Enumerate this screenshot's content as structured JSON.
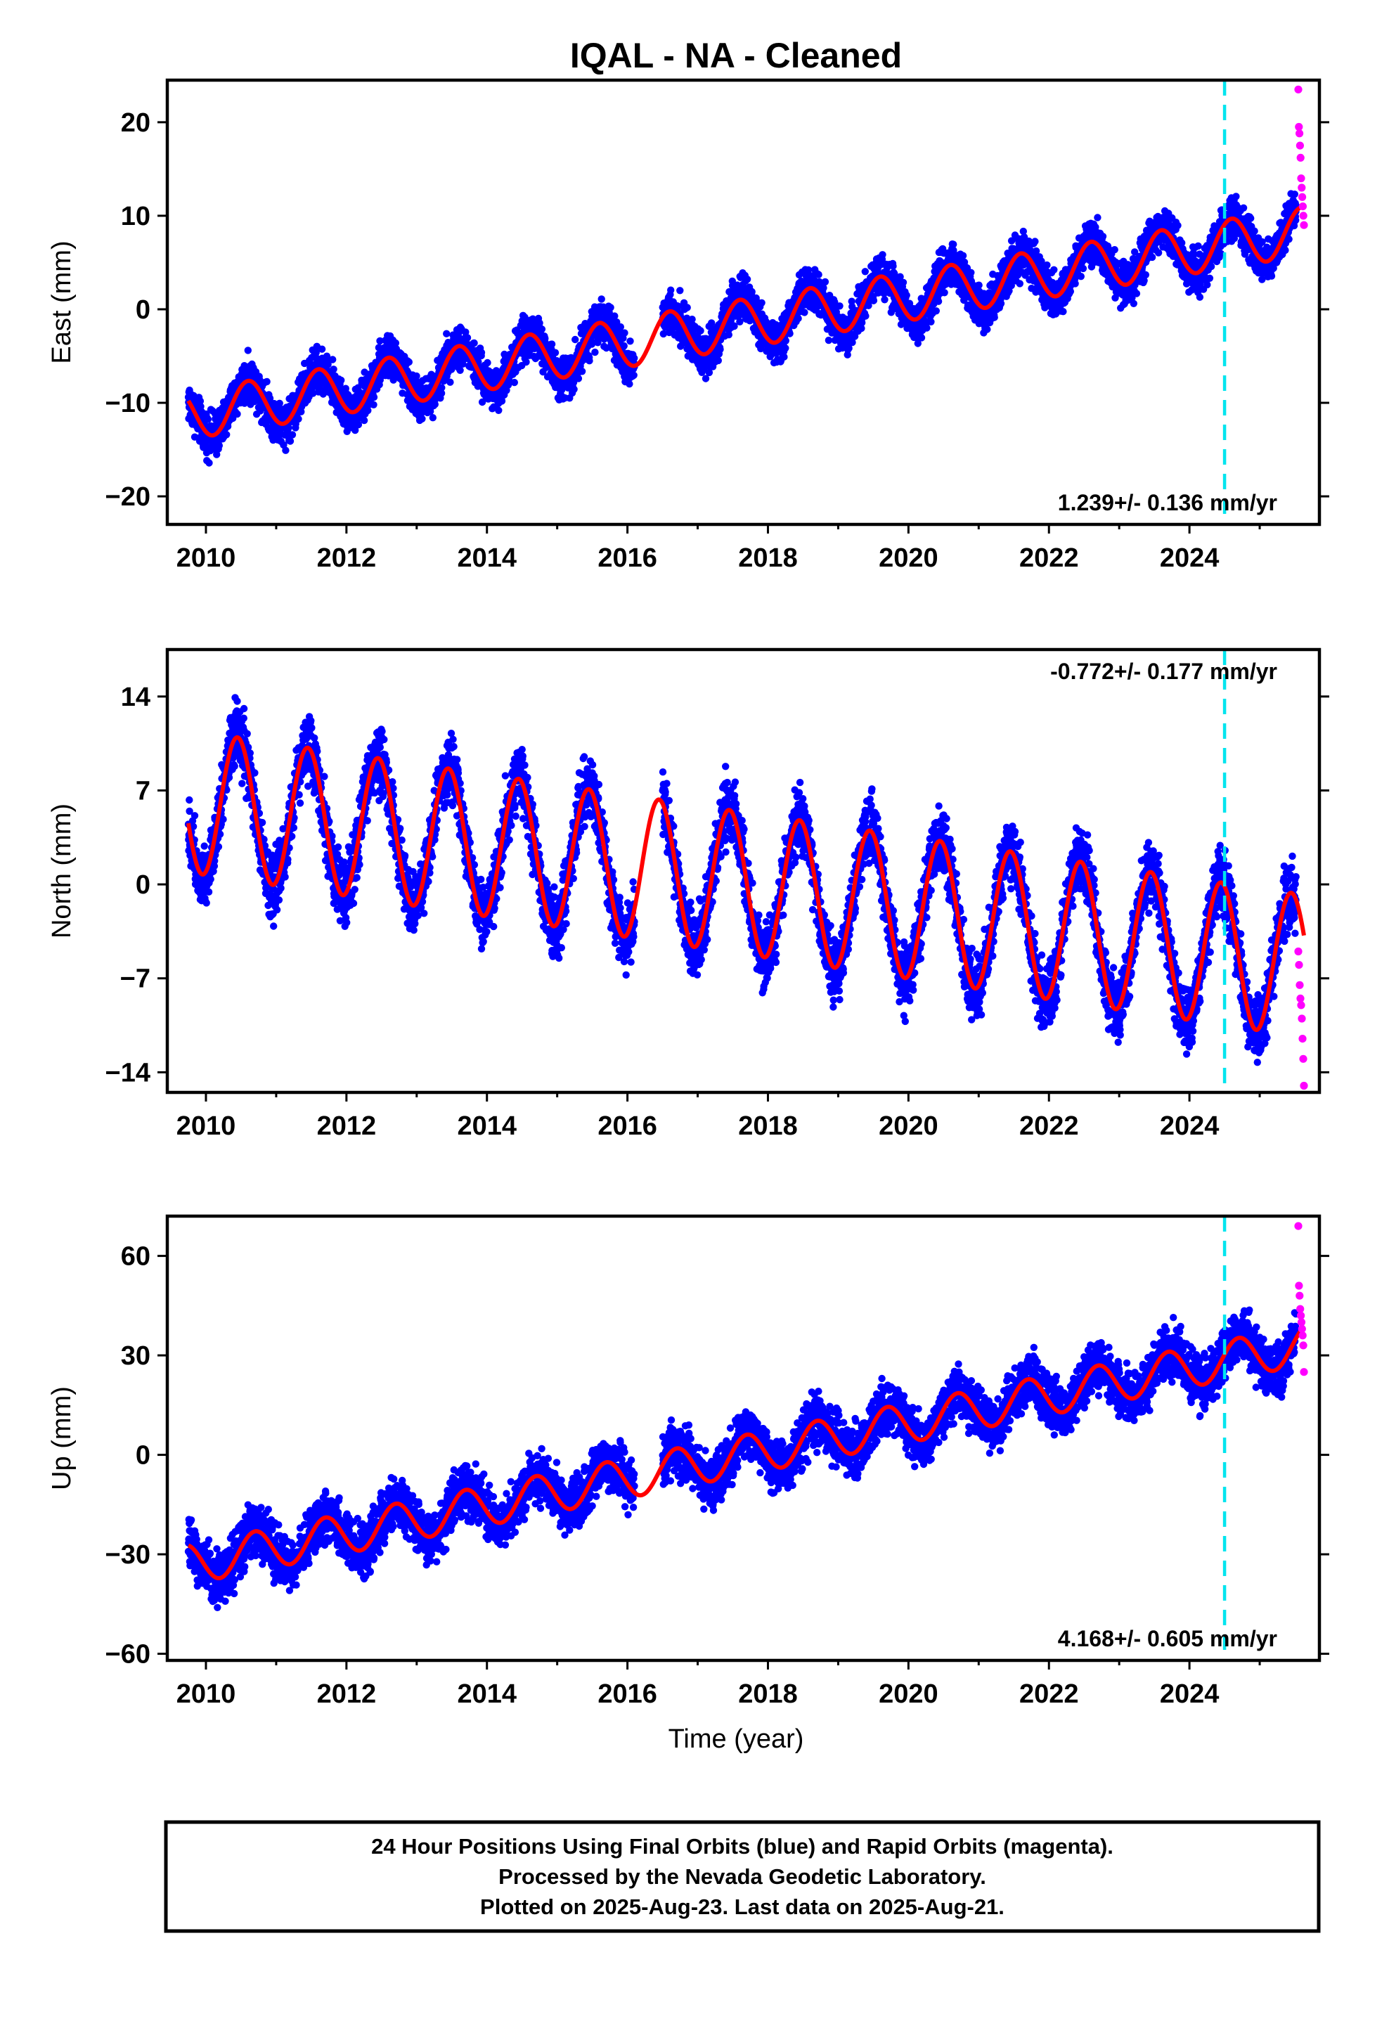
{
  "title": "IQAL  - NA - Cleaned",
  "x_axis_label": "Time (year)",
  "footer": {
    "lines": [
      "24 Hour Positions Using Final Orbits (blue) and Rapid Orbits (magenta).",
      "Processed by the Nevada Geodetic Laboratory.",
      "Plotted on 2025-Aug-23. Last data on 2025-Aug-21."
    ]
  },
  "colors": {
    "final_orbits": "#0000ff",
    "rapid_orbits": "#ff00ff",
    "model_fit": "#ff0000",
    "equipment_change": "#00e5ee",
    "frame": "#000000"
  },
  "chart_data": [
    {
      "type": "scatter",
      "component": "East",
      "ylabel": "East (mm)",
      "xlim": [
        2009.45,
        2025.85
      ],
      "ylim": [
        -23,
        24.5
      ],
      "xticks": [
        "2010",
        "2012",
        "2014",
        "2016",
        "2018",
        "2020",
        "2022",
        "2024"
      ],
      "yticks": [
        "20",
        "10",
        "0",
        "−10",
        "−20"
      ],
      "ytick_values": [
        20,
        10,
        0,
        -10,
        -20
      ],
      "rate_label": "1.239+/- 0.136 mm/yr",
      "rate_position": "bottom-right",
      "equipment_change_year": 2024.5,
      "model": {
        "start": 2009.75,
        "end": 2025.63,
        "intercept_at_2010": -11.0,
        "rate": 1.239,
        "seasonal_amplitude": 2.6,
        "phase_peak_year_fraction": 0.6
      },
      "gaps": [
        [
          2016.1,
          2016.5
        ]
      ],
      "series": [
        {
          "name": "Final Orbits (blue)",
          "x_range": [
            2009.75,
            2025.52
          ],
          "scatter_mm": 1.6
        },
        {
          "name": "Rapid Orbits (magenta)",
          "x_range": [
            2025.55,
            2025.63
          ],
          "y_values": [
            23.5,
            19.5,
            18.8,
            17.5,
            16.2,
            14.0,
            13.0,
            12.0,
            11.0,
            10.0,
            9.0
          ]
        }
      ]
    },
    {
      "type": "scatter",
      "component": "North",
      "ylabel": "North (mm)",
      "xlim": [
        2009.45,
        2025.85
      ],
      "ylim": [
        -15.5,
        17.5
      ],
      "xticks": [
        "2010",
        "2012",
        "2014",
        "2016",
        "2018",
        "2020",
        "2022",
        "2024"
      ],
      "yticks": [
        "14",
        "7",
        "0",
        "−7",
        "−14"
      ],
      "ytick_values": [
        14,
        7,
        0,
        -7,
        -14
      ],
      "rate_label": "-0.772+/- 0.177 mm/yr",
      "rate_position": "top-right",
      "equipment_change_year": 2024.5,
      "model": {
        "start": 2009.75,
        "end": 2025.63,
        "intercept_at_2010": 6.0,
        "rate": -0.772,
        "seasonal_amplitude": 5.3,
        "phase_peak_year_fraction": 0.45
      },
      "gaps": [
        [
          2016.1,
          2016.5
        ]
      ],
      "series": [
        {
          "name": "Final Orbits (blue)",
          "x_range": [
            2009.75,
            2025.52
          ],
          "scatter_mm": 1.7
        },
        {
          "name": "Rapid Orbits (magenta)",
          "x_range": [
            2025.55,
            2025.63
          ],
          "y_values": [
            -5.0,
            -6.0,
            -7.5,
            -8.5,
            -9.0,
            -10.0,
            -11.5,
            -13.0,
            -15.0
          ]
        }
      ]
    },
    {
      "type": "scatter",
      "component": "Up",
      "ylabel": "Up (mm)",
      "xlim": [
        2009.45,
        2025.85
      ],
      "ylim": [
        -62,
        72
      ],
      "xticks": [
        "2010",
        "2012",
        "2014",
        "2016",
        "2018",
        "2020",
        "2022",
        "2024"
      ],
      "yticks": [
        "60",
        "30",
        "0",
        "−30",
        "−60"
      ],
      "ytick_values": [
        60,
        30,
        0,
        -30,
        -60
      ],
      "rate_label": "4.168+/- 0.605 mm/yr",
      "rate_position": "bottom-right",
      "equipment_change_year": 2024.5,
      "model": {
        "start": 2009.75,
        "end": 2025.63,
        "intercept_at_2010": -32.0,
        "rate": 4.168,
        "seasonal_amplitude": 6.0,
        "phase_peak_year_fraction": 0.7
      },
      "gaps": [
        [
          2016.1,
          2016.5
        ]
      ],
      "series": [
        {
          "name": "Final Orbits (blue)",
          "x_range": [
            2009.75,
            2025.52
          ],
          "scatter_mm": 5.5
        },
        {
          "name": "Rapid Orbits (magenta)",
          "x_range": [
            2025.55,
            2025.63
          ],
          "y_values": [
            69,
            51,
            48,
            44,
            42,
            40,
            38,
            36,
            33,
            25
          ]
        }
      ]
    }
  ]
}
